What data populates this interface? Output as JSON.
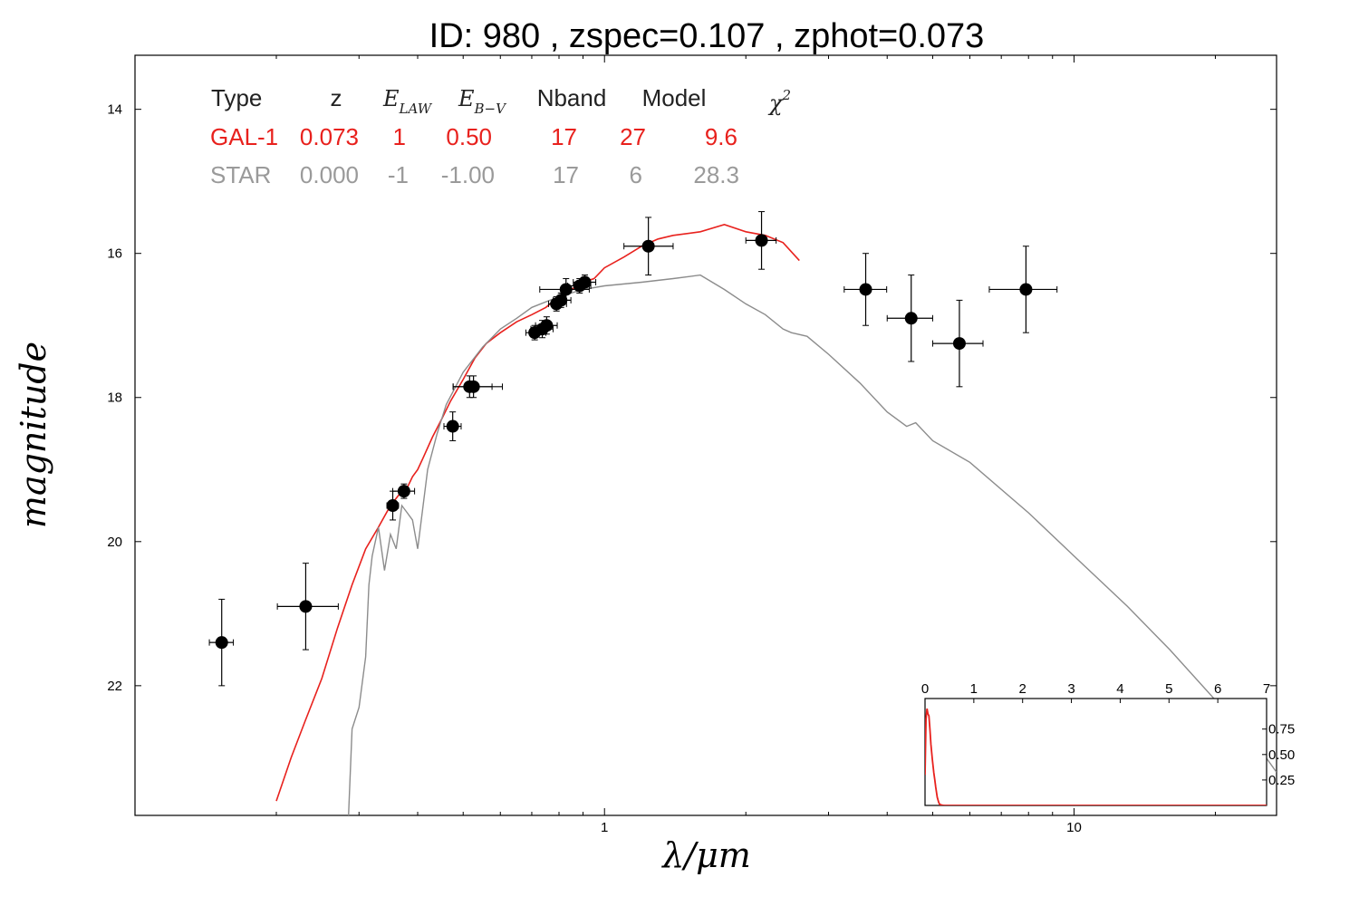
{
  "figure": {
    "title": "ID:  980   , zspec=0.107 , zphot=0.073"
  },
  "chart_data": {
    "type": "scatter",
    "x_scale": "log",
    "y_scale": "linear",
    "y_inverted": true,
    "xlabel": "λ/μm",
    "ylabel": "magnitude",
    "xlim": [
      0.1,
      27
    ],
    "ylim": [
      13.25,
      23.8
    ],
    "x_tick_labels": [
      "1",
      "10"
    ],
    "y_tick_labels": [
      "14",
      "16",
      "18",
      "20",
      "22"
    ],
    "x_ticks": [
      1,
      10
    ],
    "y_ticks": [
      14,
      16,
      18,
      20,
      22
    ],
    "points": [
      {
        "x": 0.153,
        "y": 21.4,
        "xerr_lo": 0.009,
        "xerr_hi": 0.009,
        "yerr": 0.6
      },
      {
        "x": 0.231,
        "y": 20.9,
        "xerr_lo": 0.03,
        "xerr_hi": 0.04,
        "yerr": 0.6
      },
      {
        "x": 0.354,
        "y": 19.5,
        "xerr_lo": 0.01,
        "xerr_hi": 0.01,
        "yerr": 0.2
      },
      {
        "x": 0.374,
        "y": 19.3,
        "xerr_lo": 0.02,
        "xerr_hi": 0.02,
        "yerr": 0.1
      },
      {
        "x": 0.475,
        "y": 18.4,
        "xerr_lo": 0.02,
        "xerr_hi": 0.02,
        "yerr": 0.2
      },
      {
        "x": 0.516,
        "y": 17.85,
        "xerr_lo": 0.04,
        "xerr_hi": 0.06,
        "yerr": 0.15
      },
      {
        "x": 0.526,
        "y": 17.85,
        "xerr_lo": 0.05,
        "xerr_hi": 0.08,
        "yerr": 0.15
      },
      {
        "x": 0.71,
        "y": 17.1,
        "xerr_lo": 0.03,
        "xerr_hi": 0.04,
        "yerr": 0.1
      },
      {
        "x": 0.737,
        "y": 17.05,
        "xerr_lo": 0.04,
        "xerr_hi": 0.04,
        "yerr": 0.12
      },
      {
        "x": 0.753,
        "y": 17.0,
        "xerr_lo": 0.04,
        "xerr_hi": 0.04,
        "yerr": 0.12
      },
      {
        "x": 0.79,
        "y": 16.7,
        "xerr_lo": 0.03,
        "xerr_hi": 0.04,
        "yerr": 0.1
      },
      {
        "x": 0.808,
        "y": 16.65,
        "xerr_lo": 0.03,
        "xerr_hi": 0.04,
        "yerr": 0.1
      },
      {
        "x": 0.828,
        "y": 16.5,
        "xerr_lo": 0.1,
        "xerr_hi": 0.1,
        "yerr": 0.15
      },
      {
        "x": 0.885,
        "y": 16.45,
        "xerr_lo": 0.05,
        "xerr_hi": 0.05,
        "yerr": 0.1
      },
      {
        "x": 0.908,
        "y": 16.4,
        "xerr_lo": 0.05,
        "xerr_hi": 0.05,
        "yerr": 0.1
      },
      {
        "x": 1.24,
        "y": 15.9,
        "xerr_lo": 0.14,
        "xerr_hi": 0.16,
        "yerr": 0.4
      },
      {
        "x": 2.16,
        "y": 15.82,
        "xerr_lo": 0.16,
        "xerr_hi": 0.16,
        "yerr": 0.4
      },
      {
        "x": 3.6,
        "y": 16.5,
        "xerr_lo": 0.36,
        "xerr_hi": 0.39,
        "yerr": 0.5
      },
      {
        "x": 4.5,
        "y": 16.9,
        "xerr_lo": 0.5,
        "xerr_hi": 0.5,
        "yerr": 0.6
      },
      {
        "x": 5.7,
        "y": 17.25,
        "xerr_lo": 0.7,
        "xerr_hi": 0.7,
        "yerr": 0.6
      },
      {
        "x": 7.9,
        "y": 16.5,
        "xerr_lo": 1.3,
        "xerr_hi": 1.3,
        "yerr": 0.6
      }
    ],
    "series": [
      {
        "color": "#e8211d",
        "x": [
          0.2,
          0.215,
          0.23,
          0.25,
          0.27,
          0.29,
          0.31,
          0.33,
          0.35,
          0.37,
          0.38,
          0.39,
          0.4,
          0.41,
          0.43,
          0.45,
          0.47,
          0.5,
          0.53,
          0.56,
          0.6,
          0.65,
          0.7,
          0.75,
          0.8,
          0.85,
          0.9,
          0.95,
          1.0,
          1.1,
          1.2,
          1.3,
          1.4,
          1.6,
          1.8,
          2.0,
          2.2,
          2.4,
          2.6
        ],
        "y": [
          23.6,
          23.0,
          22.5,
          21.9,
          21.2,
          20.6,
          20.1,
          19.8,
          19.5,
          19.3,
          19.25,
          19.1,
          19.0,
          18.85,
          18.55,
          18.3,
          18.05,
          17.75,
          17.45,
          17.25,
          17.1,
          16.95,
          16.85,
          16.75,
          16.6,
          16.5,
          16.4,
          16.35,
          16.2,
          16.05,
          15.9,
          15.8,
          15.75,
          15.7,
          15.6,
          15.7,
          15.75,
          15.85,
          16.1
        ]
      },
      {
        "color": "#8c8c8c",
        "x": [
          0.285,
          0.29,
          0.3,
          0.31,
          0.315,
          0.32,
          0.33,
          0.34,
          0.35,
          0.36,
          0.37,
          0.38,
          0.39,
          0.4,
          0.42,
          0.44,
          0.46,
          0.5,
          0.55,
          0.6,
          0.65,
          0.7,
          0.8,
          0.9,
          1.0,
          1.2,
          1.4,
          1.6,
          1.8,
          2.0,
          2.2,
          2.4,
          2.5,
          2.7,
          3.0,
          3.5,
          4.0,
          4.4,
          4.6,
          5.0,
          6.0,
          8.0,
          10.0,
          13.0,
          16.0,
          20.0,
          25.0,
          27.0
        ],
        "y": [
          23.8,
          22.6,
          22.3,
          21.6,
          20.6,
          20.2,
          19.8,
          20.4,
          19.9,
          20.1,
          19.5,
          19.6,
          19.7,
          20.1,
          19.0,
          18.5,
          18.1,
          17.65,
          17.3,
          17.05,
          16.9,
          16.75,
          16.6,
          16.5,
          16.45,
          16.4,
          16.35,
          16.3,
          16.5,
          16.7,
          16.85,
          17.05,
          17.1,
          17.15,
          17.4,
          17.8,
          18.2,
          18.4,
          18.35,
          18.6,
          18.9,
          19.6,
          20.2,
          20.9,
          21.5,
          22.2,
          22.9,
          23.2
        ]
      }
    ],
    "table": {
      "headers": {
        "type": "Type",
        "z": "z",
        "elaw": "E",
        "elaw_sub": "LAW",
        "ebv": "E",
        "ebv_sub": "B−V",
        "nband": "Nband",
        "model": "Model",
        "chi2": "χ",
        "chi2_sup": "2"
      },
      "rows": [
        {
          "color": "#e8211d",
          "type": "GAL-1",
          "z": "0.073",
          "elaw": "1",
          "ebv": "0.50",
          "nband": "17",
          "model": "27",
          "chi2": "9.6"
        },
        {
          "color": "#9a9a9a",
          "type": "STAR",
          "z": "0.000",
          "elaw": "-1",
          "ebv": "-1.00",
          "nband": "17",
          "model": "6",
          "chi2": "28.3"
        }
      ]
    },
    "inset": {
      "type": "line",
      "xlim": [
        0,
        7
      ],
      "ylim": [
        0,
        1.05
      ],
      "x_tick_labels": [
        "0",
        "1",
        "2",
        "3",
        "4",
        "5",
        "6",
        "7"
      ],
      "y_tick_labels": [
        "0.25",
        "0.50",
        "0.75"
      ],
      "y_ticks": [
        0.25,
        0.5,
        0.75
      ],
      "series": [
        {
          "color": "#e8211d",
          "x": [
            0,
            0.02,
            0.04,
            0.06,
            0.08,
            0.1,
            0.12,
            0.15,
            0.18,
            0.2,
            0.22,
            0.25,
            0.28,
            0.3,
            0.33,
            0.36,
            0.4,
            0.5,
            0.7,
            7
          ],
          "y": [
            0.3,
            0.85,
            0.95,
            0.9,
            0.88,
            0.75,
            0.6,
            0.45,
            0.32,
            0.25,
            0.18,
            0.08,
            0.03,
            0.01,
            0.005,
            0.002,
            0.0,
            0.0,
            0.0,
            0.0
          ]
        }
      ]
    }
  }
}
